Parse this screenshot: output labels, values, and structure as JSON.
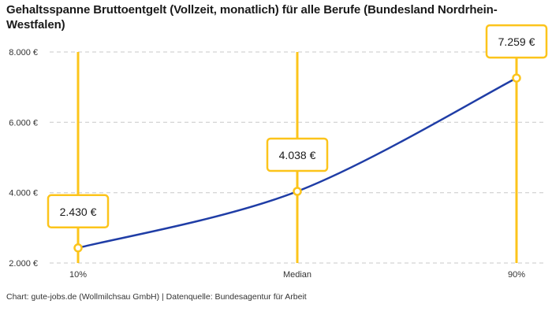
{
  "title": "Gehaltsspanne Bruttoentgelt (Vollzeit, monatlich) für alle Berufe (Bundesland Nordrhein-Westfalen)",
  "footer": "Chart: gute-jobs.de (Wollmilchsau GmbH) | Datenquelle: Bundesagentur für Arbeit",
  "chart_data": {
    "type": "line",
    "title": "Gehaltsspanne Bruttoentgelt (Vollzeit, monatlich) für alle Berufe (Bundesland Nordrhein-Westfalen)",
    "categories": [
      "10%",
      "Median",
      "90%"
    ],
    "values": [
      2430,
      4038,
      7259
    ],
    "value_labels": [
      "2.430 €",
      "4.038 €",
      "7.259 €"
    ],
    "xlabel": "",
    "ylabel": "",
    "ylim": [
      2000,
      8000
    ],
    "yticks": [
      {
        "value": 2000,
        "label": "2.000 €"
      },
      {
        "value": 4000,
        "label": "4.000 €"
      },
      {
        "value": 6000,
        "label": "6.000 €"
      },
      {
        "value": 8000,
        "label": "8.000 €"
      }
    ],
    "grid": "horizontal-dashed",
    "legend": "none",
    "colors": {
      "curve": "#1f3da6",
      "highlight": "#fcc41b",
      "grid": "#c8c8c8",
      "marker_fill": "#ffffff",
      "label_box_fill": "#ffffff",
      "axis_text": "#333333",
      "label_text": "#1a1a1a",
      "background": "#ffffff"
    }
  }
}
